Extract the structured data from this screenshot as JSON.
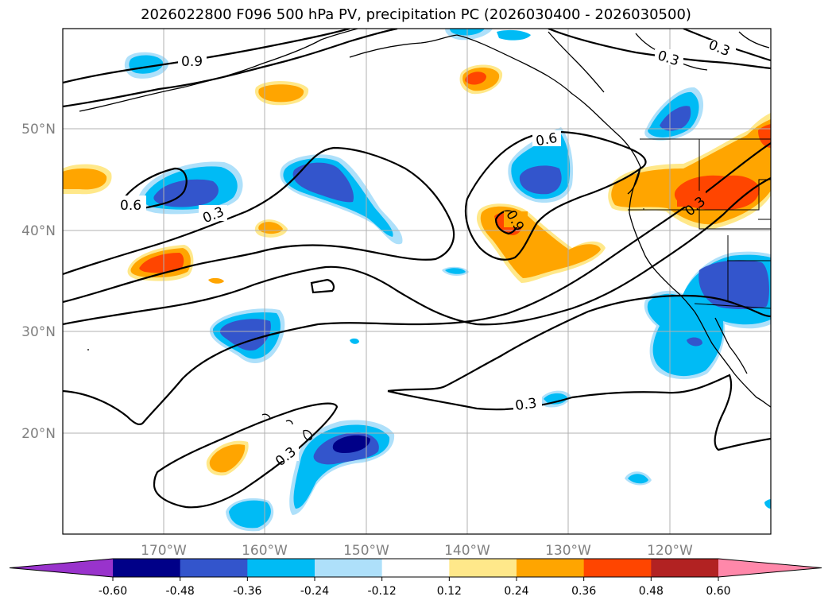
{
  "title": "2026022800 F096 500 hPa PV, precipitation PC (2026030400 - 2026030500)",
  "axes": {
    "lon_ticks": [
      "170°W",
      "160°W",
      "150°W",
      "140°W",
      "130°W",
      "120°W"
    ],
    "lat_ticks": [
      "50°N",
      "40°N",
      "30°N",
      "20°N"
    ]
  },
  "colorbar": {
    "levels": [
      "-0.60",
      "-0.48",
      "-0.36",
      "-0.24",
      "-0.12",
      "0.12",
      "0.24",
      "0.36",
      "0.48",
      "0.60"
    ],
    "colors": [
      "#9933cc",
      "#000088",
      "#3355cc",
      "#00bbf5",
      "#aee0fa",
      "#ffffff",
      "#ffe88a",
      "#ffa500",
      "#ff4500",
      "#b22222",
      "#ff88aa"
    ]
  },
  "contour_labels": [
    "0.9",
    "0.3",
    "0.6",
    "0.3",
    "0.6",
    "0.9",
    "0.3",
    "0.3",
    "0.3",
    "0.3"
  ],
  "colors": {
    "strong_neg": "#000088",
    "mod_neg": "#3355cc",
    "weak_neg": "#00bbf5",
    "faint_neg": "#aee0fa",
    "faint_pos": "#ffe88a",
    "weak_pos": "#ffa500",
    "mod_pos": "#ff4500",
    "grid": "#b0b0b0"
  }
}
